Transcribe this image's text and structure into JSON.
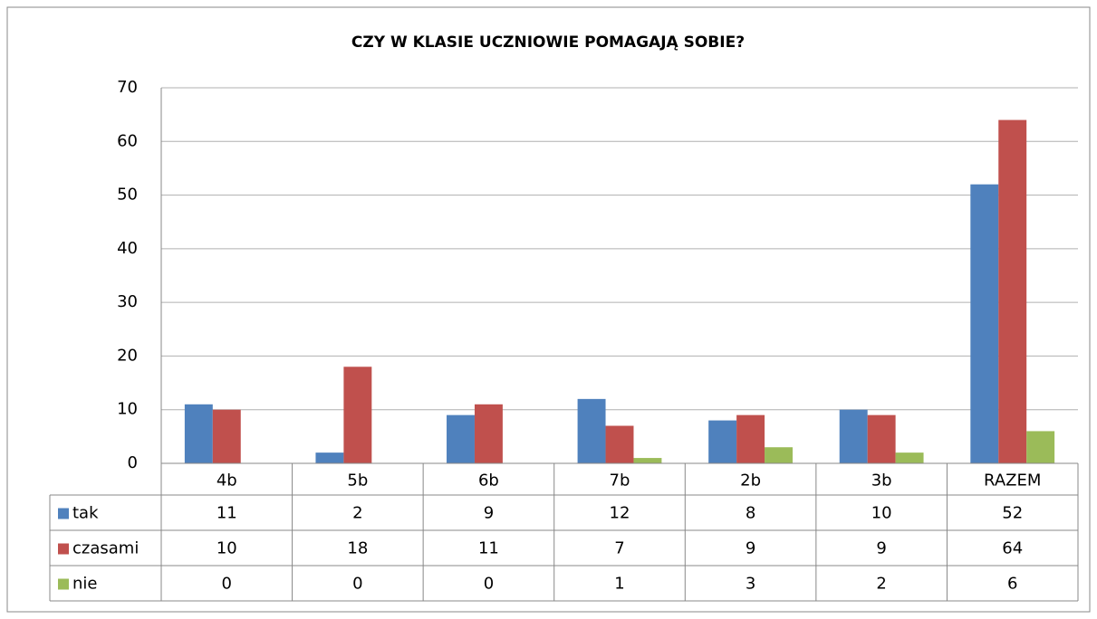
{
  "chart_data": {
    "type": "bar",
    "title": "CZY W KLASIE UCZNIOWIE POMAGAJĄ SOBIE?",
    "categories": [
      "4b",
      "5b",
      "6b",
      "7b",
      "2b",
      "3b",
      "RAZEM"
    ],
    "series": [
      {
        "name": "tak",
        "color": "#4f81bd",
        "values": [
          11,
          2,
          9,
          12,
          8,
          10,
          52
        ]
      },
      {
        "name": "czasami",
        "color": "#c0504d",
        "values": [
          10,
          18,
          11,
          7,
          9,
          9,
          64
        ]
      },
      {
        "name": "nie",
        "color": "#9bbb59",
        "values": [
          0,
          0,
          0,
          1,
          3,
          2,
          6
        ]
      }
    ],
    "ylim": [
      0,
      70
    ],
    "yticks": [
      0,
      10,
      20,
      30,
      40,
      50,
      60,
      70
    ],
    "grid": true
  }
}
